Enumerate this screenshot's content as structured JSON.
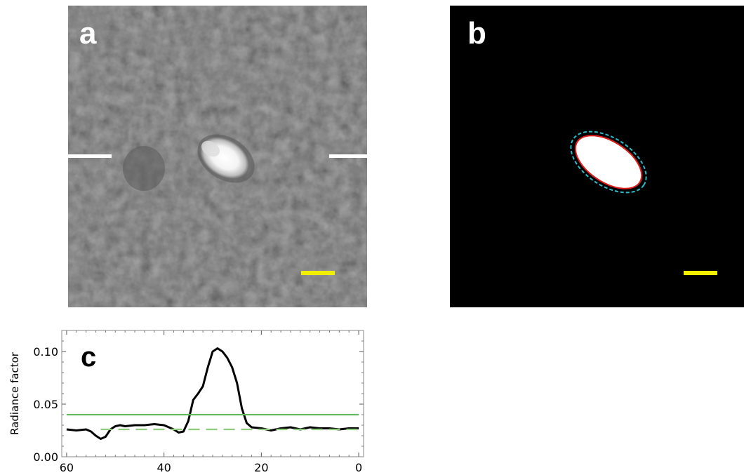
{
  "panels": {
    "a": {
      "label": "a",
      "scale_bar_color": "#f2ee00",
      "marker_color": "#ffffff"
    },
    "b": {
      "label": "b",
      "scale_bar_color": "#f2ee00",
      "ellipse_inner_color": "#e21b1b",
      "ellipse_outer_color": "#2bbcc8"
    },
    "c": {
      "label": "c"
    }
  },
  "chart_data": {
    "type": "line",
    "ylabel": "Radiance factor",
    "xlabel": "",
    "xlim": [
      61,
      -1
    ],
    "ylim": [
      0.0,
      0.12
    ],
    "x_ticks": [
      60,
      40,
      20,
      0
    ],
    "x_tick_labels": [
      "60",
      "40",
      "20",
      "0"
    ],
    "y_ticks": [
      0.0,
      0.05,
      0.1
    ],
    "y_tick_labels": [
      "0.00",
      "0.05",
      "0.10"
    ],
    "grid": false,
    "series": [
      {
        "color": "#000000",
        "style": "solid",
        "x": [
          60,
          58,
          56,
          55,
          54,
          53,
          52,
          51,
          50,
          49,
          48,
          46,
          44,
          42,
          40,
          38,
          37,
          36,
          35,
          34,
          33,
          32,
          31,
          30,
          29,
          28,
          27,
          26,
          25,
          24,
          23,
          22,
          20,
          18,
          16,
          14,
          12,
          10,
          8,
          6,
          4,
          2,
          0
        ],
        "y": [
          0.026,
          0.025,
          0.026,
          0.024,
          0.02,
          0.017,
          0.019,
          0.026,
          0.029,
          0.03,
          0.029,
          0.03,
          0.03,
          0.031,
          0.03,
          0.026,
          0.023,
          0.024,
          0.034,
          0.054,
          0.06,
          0.067,
          0.085,
          0.1,
          0.103,
          0.1,
          0.094,
          0.085,
          0.07,
          0.046,
          0.032,
          0.028,
          0.027,
          0.025,
          0.027,
          0.028,
          0.026,
          0.028,
          0.027,
          0.027,
          0.026,
          0.027,
          0.027
        ]
      },
      {
        "color": "#64b95f",
        "style": "solid",
        "x": [
          60,
          0
        ],
        "y": [
          0.04,
          0.04
        ]
      },
      {
        "color": "#8fcb7c",
        "style": "dashed",
        "x": [
          53,
          0
        ],
        "y": [
          0.026,
          0.026
        ]
      }
    ]
  }
}
